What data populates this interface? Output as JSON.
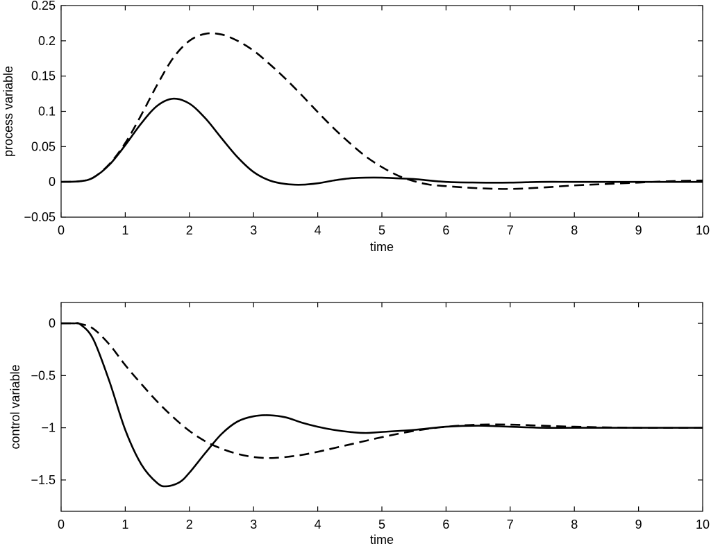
{
  "chart_data": [
    {
      "type": "line",
      "xlabel": "time",
      "ylabel": "process variable",
      "xlim": [
        0,
        10
      ],
      "ylim": [
        -0.05,
        0.25
      ],
      "xticks": [
        "0",
        "1",
        "2",
        "3",
        "4",
        "5",
        "6",
        "7",
        "8",
        "9",
        "10"
      ],
      "yticks": [
        "0.25",
        "0.2",
        "0.15",
        "0.1",
        "0.05",
        "0",
        "−0.05"
      ],
      "ytick_values": [
        0.25,
        0.2,
        0.15,
        0.1,
        0.05,
        0,
        -0.05
      ],
      "grid": false,
      "series": [
        {
          "style": "solid",
          "x": [
            0,
            0.3,
            0.5,
            0.75,
            1.0,
            1.25,
            1.5,
            1.75,
            2.0,
            2.25,
            2.5,
            2.75,
            3.0,
            3.25,
            3.5,
            3.75,
            4.0,
            4.25,
            4.5,
            4.75,
            5.0,
            5.25,
            5.5,
            6.0,
            6.5,
            7.0,
            7.5,
            8.0,
            9.0,
            10.0
          ],
          "y": [
            0,
            0.001,
            0.006,
            0.024,
            0.052,
            0.083,
            0.108,
            0.118,
            0.111,
            0.09,
            0.062,
            0.035,
            0.014,
            0.002,
            -0.003,
            -0.004,
            -0.002,
            0.002,
            0.005,
            0.006,
            0.006,
            0.005,
            0.004,
            0.0,
            -0.001,
            -0.001,
            0.0,
            0.0,
            0.0,
            0.0
          ]
        },
        {
          "style": "dashed",
          "x": [
            0,
            0.3,
            0.5,
            0.75,
            1.0,
            1.25,
            1.5,
            1.75,
            2.0,
            2.25,
            2.5,
            2.75,
            3.0,
            3.25,
            3.5,
            3.75,
            4.0,
            4.25,
            4.5,
            4.75,
            5.0,
            5.25,
            5.5,
            5.75,
            6.0,
            6.5,
            7.0,
            7.5,
            8.0,
            8.5,
            9.0,
            9.5,
            10.0
          ],
          "y": [
            0,
            0.001,
            0.006,
            0.025,
            0.055,
            0.095,
            0.138,
            0.176,
            0.2,
            0.21,
            0.209,
            0.2,
            0.186,
            0.167,
            0.146,
            0.123,
            0.099,
            0.076,
            0.055,
            0.036,
            0.021,
            0.009,
            0.001,
            -0.004,
            -0.006,
            -0.009,
            -0.01,
            -0.008,
            -0.005,
            -0.003,
            -0.001,
            0.001,
            0.002
          ]
        }
      ]
    },
    {
      "type": "line",
      "xlabel": "time",
      "ylabel": "control variable",
      "xlim": [
        0,
        10
      ],
      "ylim": [
        -1.8,
        0.2
      ],
      "xticks": [
        "0",
        "1",
        "2",
        "3",
        "4",
        "5",
        "6",
        "7",
        "8",
        "9",
        "10"
      ],
      "yticks": [
        "0",
        "−0.5",
        "−1",
        "−1.5"
      ],
      "ytick_values": [
        0,
        -0.5,
        -1,
        -1.5
      ],
      "grid": false,
      "series": [
        {
          "style": "solid",
          "x": [
            0,
            0.2,
            0.3,
            0.5,
            0.75,
            1.0,
            1.25,
            1.5,
            1.65,
            1.85,
            2.0,
            2.25,
            2.5,
            2.75,
            3.0,
            3.25,
            3.5,
            3.75,
            4.0,
            4.25,
            4.5,
            4.75,
            5.0,
            5.5,
            6.0,
            6.5,
            7.0,
            7.5,
            8.0,
            9.0,
            10.0
          ],
          "y": [
            0,
            0,
            -0.01,
            -0.15,
            -0.55,
            -1.02,
            -1.35,
            -1.53,
            -1.56,
            -1.52,
            -1.43,
            -1.24,
            -1.06,
            -0.94,
            -0.89,
            -0.88,
            -0.9,
            -0.95,
            -0.99,
            -1.02,
            -1.04,
            -1.05,
            -1.04,
            -1.02,
            -0.99,
            -0.98,
            -0.99,
            -1.0,
            -1.0,
            -1.0,
            -1.0
          ]
        },
        {
          "style": "dashed",
          "x": [
            0,
            0.2,
            0.3,
            0.5,
            0.75,
            1.0,
            1.25,
            1.5,
            1.75,
            2.0,
            2.25,
            2.5,
            2.75,
            3.0,
            3.25,
            3.5,
            3.75,
            4.0,
            4.5,
            5.0,
            5.5,
            6.0,
            6.5,
            7.0,
            7.5,
            8.0,
            9.0,
            10.0
          ],
          "y": [
            0,
            0,
            -0.005,
            -0.05,
            -0.2,
            -0.4,
            -0.58,
            -0.75,
            -0.9,
            -1.03,
            -1.13,
            -1.2,
            -1.25,
            -1.28,
            -1.29,
            -1.28,
            -1.26,
            -1.23,
            -1.16,
            -1.09,
            -1.03,
            -0.99,
            -0.97,
            -0.97,
            -0.98,
            -0.99,
            -1.0,
            -1.0
          ]
        }
      ]
    }
  ]
}
